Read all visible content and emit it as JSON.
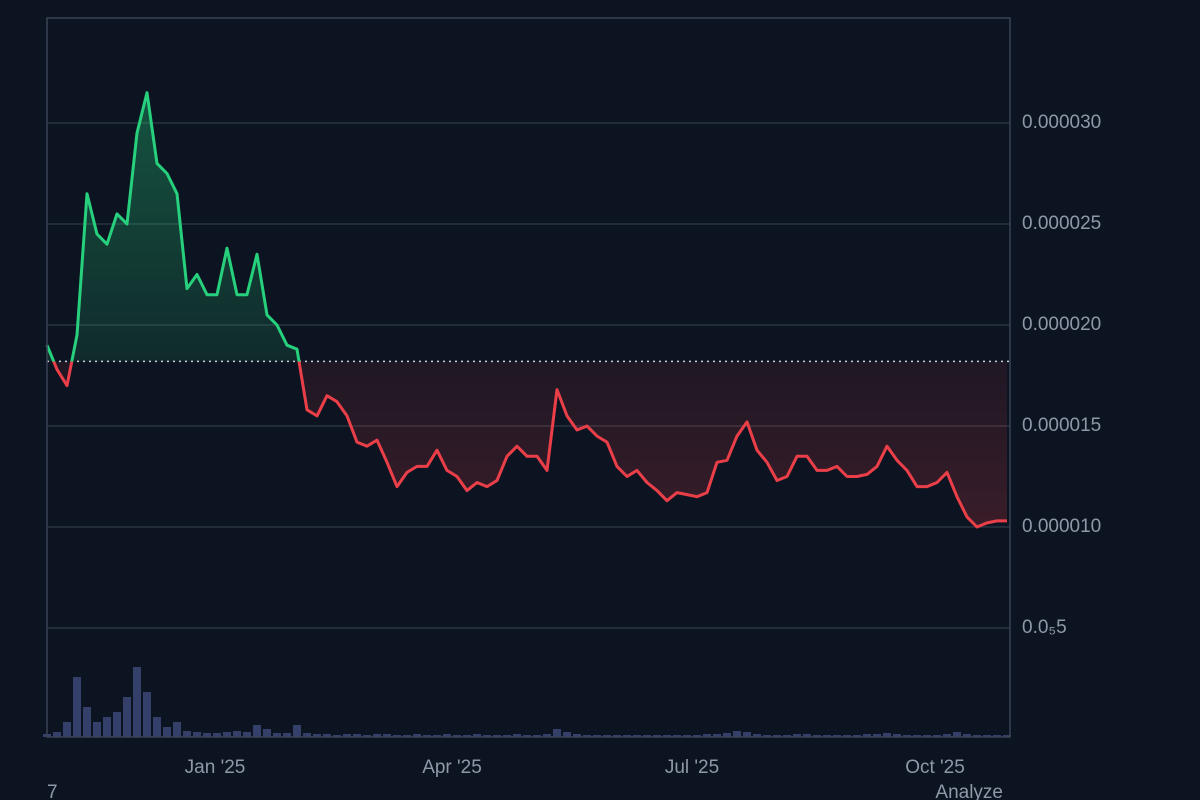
{
  "chart_data": {
    "type": "line",
    "xlim": [
      0,
      96
    ],
    "xticks": [
      {
        "value": 16.8,
        "label": "Jan '25"
      },
      {
        "value": 40.5,
        "label": "Apr '25"
      },
      {
        "value": 64.5,
        "label": "Jul '25"
      },
      {
        "value": 88.8,
        "label": "Oct '25"
      }
    ],
    "ylim": [
      -4e-07,
      3.52e-05
    ],
    "yticks": [
      {
        "value": 5e-06,
        "label": "0.0₅5"
      },
      {
        "value": 1e-05,
        "label": "0.000010"
      },
      {
        "value": 1.5e-05,
        "label": "0.000015"
      },
      {
        "value": 2e-05,
        "label": "0.000020"
      },
      {
        "value": 2.5e-05,
        "label": "0.000025"
      },
      {
        "value": 3e-05,
        "label": "0.000030"
      }
    ],
    "grid": true,
    "reference_line": 1.82e-05,
    "up_color": "#26d07c",
    "down_color": "#ea3f48",
    "series": [
      {
        "name": "price",
        "values": [
          1.9e-05,
          1.78e-05,
          1.7e-05,
          1.95e-05,
          2.65e-05,
          2.45e-05,
          2.4e-05,
          2.55e-05,
          2.5e-05,
          2.95e-05,
          3.15e-05,
          2.8e-05,
          2.75e-05,
          2.65e-05,
          2.18e-05,
          2.25e-05,
          2.15e-05,
          2.15e-05,
          2.38e-05,
          2.15e-05,
          2.15e-05,
          2.35e-05,
          2.05e-05,
          2e-05,
          1.9e-05,
          1.88e-05,
          1.58e-05,
          1.55e-05,
          1.65e-05,
          1.62e-05,
          1.55e-05,
          1.42e-05,
          1.4e-05,
          1.43e-05,
          1.32e-05,
          1.2e-05,
          1.27e-05,
          1.3e-05,
          1.3e-05,
          1.38e-05,
          1.28e-05,
          1.25e-05,
          1.18e-05,
          1.22e-05,
          1.2e-05,
          1.23e-05,
          1.35e-05,
          1.4e-05,
          1.35e-05,
          1.35e-05,
          1.28e-05,
          1.68e-05,
          1.55e-05,
          1.48e-05,
          1.5e-05,
          1.45e-05,
          1.42e-05,
          1.3e-05,
          1.25e-05,
          1.28e-05,
          1.22e-05,
          1.18e-05,
          1.13e-05,
          1.17e-05,
          1.16e-05,
          1.15e-05,
          1.17e-05,
          1.32e-05,
          1.33e-05,
          1.45e-05,
          1.52e-05,
          1.38e-05,
          1.32e-05,
          1.23e-05,
          1.25e-05,
          1.35e-05,
          1.35e-05,
          1.28e-05,
          1.28e-05,
          1.3e-05,
          1.25e-05,
          1.25e-05,
          1.26e-05,
          1.3e-05,
          1.4e-05,
          1.33e-05,
          1.28e-05,
          1.2e-05,
          1.2e-05,
          1.22e-05,
          1.27e-05,
          1.15e-05,
          1.05e-05,
          1e-05,
          1.02e-05,
          1.03e-05,
          1.03e-05
        ]
      },
      {
        "name": "volume",
        "axis": "y2",
        "color": "#34406a",
        "values": [
          3,
          5,
          15,
          60,
          30,
          15,
          20,
          25,
          40,
          70,
          45,
          20,
          10,
          15,
          6,
          5,
          4,
          4,
          5,
          6,
          5,
          12,
          8,
          4,
          4,
          12,
          4,
          3,
          3,
          2,
          3,
          3,
          2,
          3,
          3,
          2,
          2,
          3,
          2,
          2,
          3,
          2,
          2,
          3,
          2,
          2,
          2,
          3,
          2,
          2,
          3,
          8,
          5,
          3,
          2,
          2,
          2,
          2,
          2,
          2,
          2,
          2,
          2,
          2,
          2,
          2,
          3,
          3,
          4,
          6,
          5,
          3,
          2,
          2,
          2,
          3,
          3,
          2,
          2,
          2,
          2,
          2,
          3,
          3,
          4,
          3,
          2,
          2,
          2,
          2,
          3,
          5,
          3,
          2,
          2,
          2,
          2
        ]
      }
    ],
    "y2lim": [
      0,
      100
    ],
    "footer_left": "7",
    "footer_right": "Analyze"
  }
}
